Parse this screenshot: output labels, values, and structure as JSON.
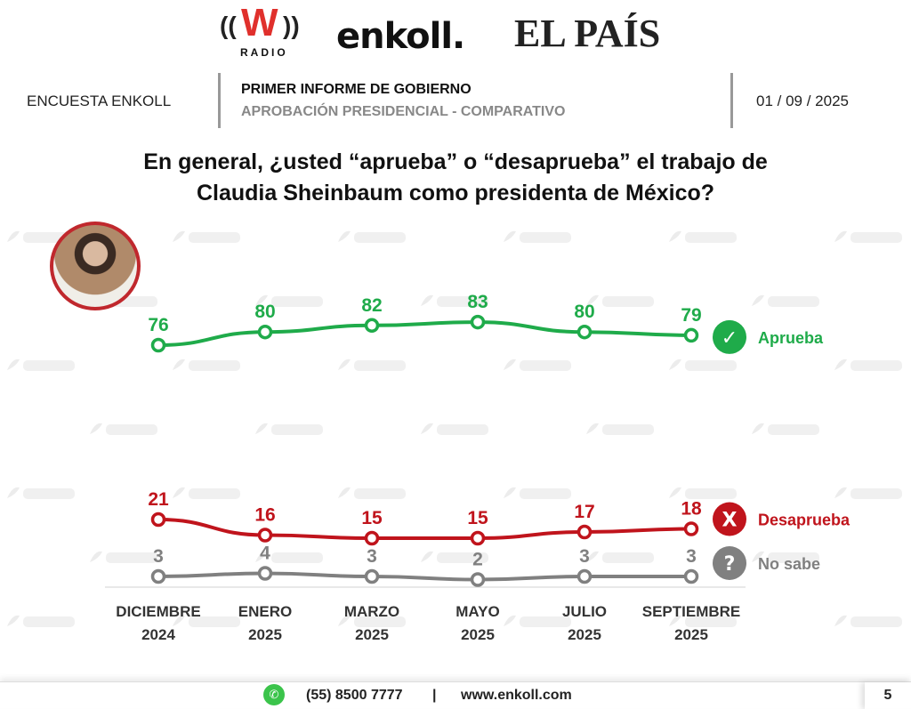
{
  "logos": {
    "w_radio": "W RADIO",
    "enkoll": "enkoll.",
    "el_pais": "EL PAÍS"
  },
  "header": {
    "survey": "ENCUESTA ENKOLL",
    "title": "PRIMER INFORME DE GOBIERNO",
    "subtitle": "APROBACIÓN PRESIDENCIAL - COMPARATIVO",
    "date": "01 / 09 / 2025"
  },
  "question": {
    "line1": "En general, ¿usted “aprueba” o “desaprueba” el trabajo de",
    "line2": "Claudia Sheinbaum como presidenta de México?"
  },
  "watermark": "enkoll.",
  "chart_data": {
    "type": "line",
    "title": "En general, ¿usted “aprueba” o “desaprueba” el trabajo de Claudia Sheinbaum como presidenta de México?",
    "categories": [
      [
        "DICIEMBRE",
        "2024"
      ],
      [
        "ENERO",
        "2025"
      ],
      [
        "MARZO",
        "2025"
      ],
      [
        "MAYO",
        "2025"
      ],
      [
        "JULIO",
        "2025"
      ],
      [
        "SEPTIEMBRE",
        "2025"
      ]
    ],
    "series": [
      {
        "name": "Aprueba",
        "values": [
          76,
          80,
          82,
          83,
          80,
          79
        ],
        "color": "#1fab4a",
        "icon": "check-icon",
        "glyph": "✓"
      },
      {
        "name": "Desaprueba",
        "values": [
          21,
          16,
          15,
          15,
          17,
          18
        ],
        "color": "#c0141c",
        "icon": "x-icon",
        "glyph": "X"
      },
      {
        "name": "No sabe",
        "values": [
          3,
          4,
          3,
          2,
          3,
          3
        ],
        "color": "#808080",
        "icon": "question-icon",
        "glyph": "?"
      }
    ],
    "unit": "%",
    "grid": false,
    "legend": "right"
  },
  "footer": {
    "phone": "(55) 8500 7777",
    "sep": "|",
    "web": "www.enkoll.com",
    "page": "5"
  }
}
